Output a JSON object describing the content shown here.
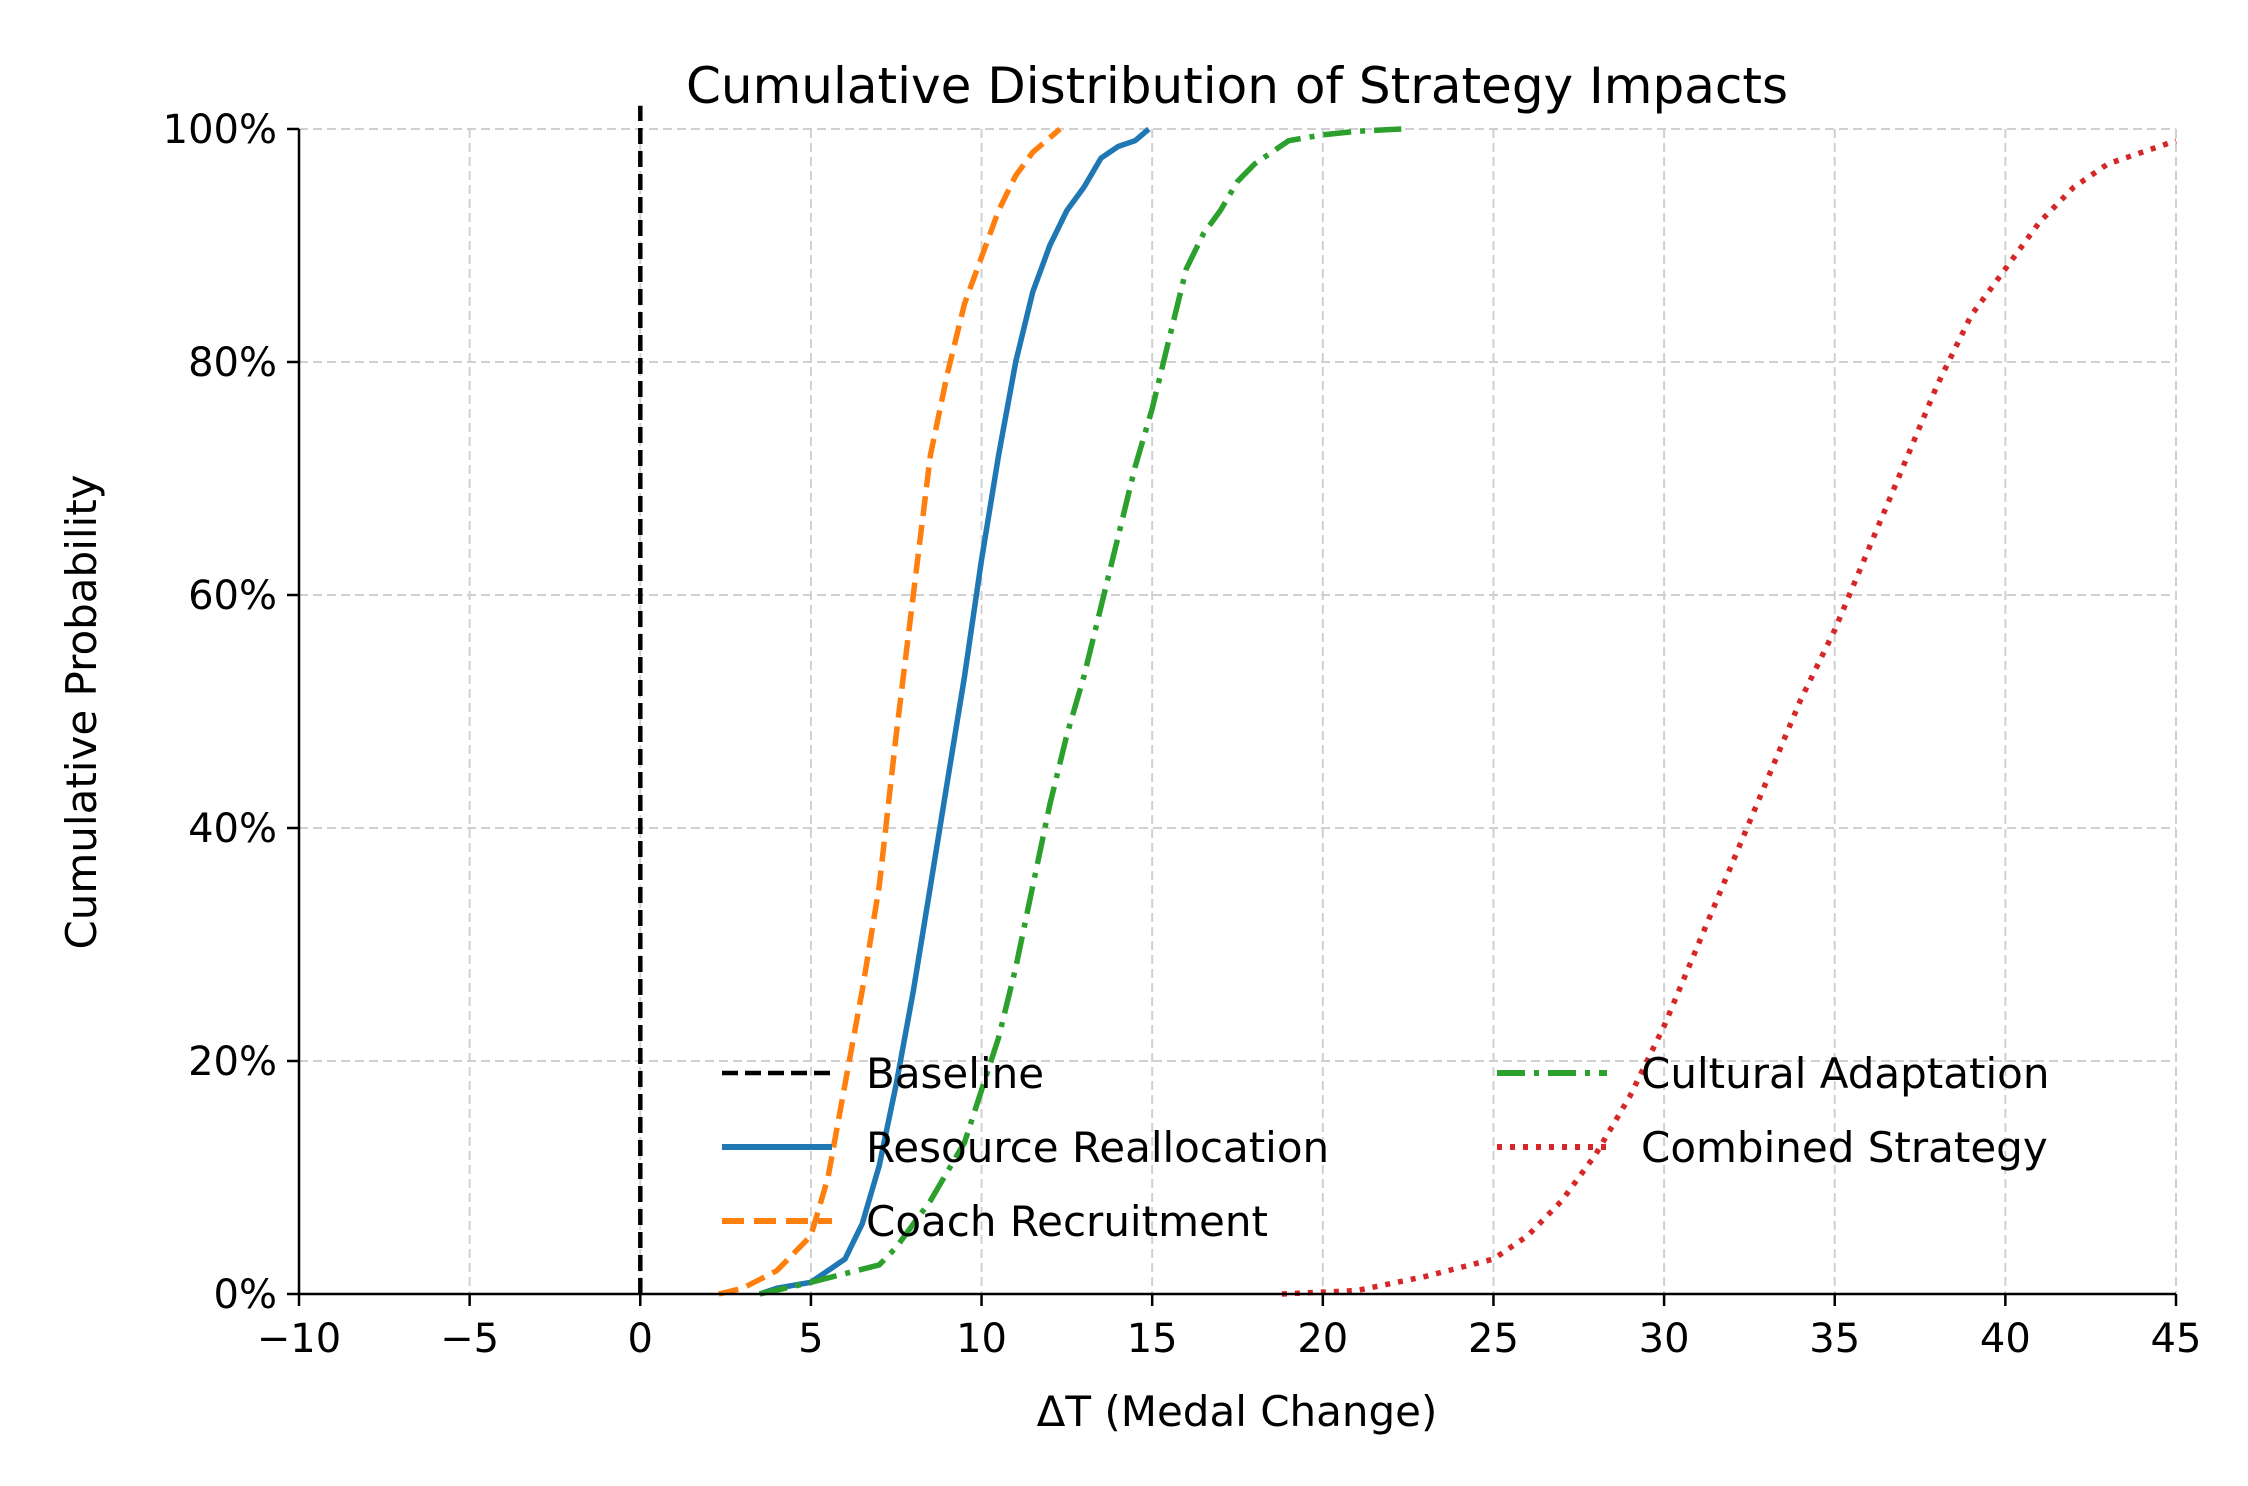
{
  "chart_data": {
    "type": "line",
    "title": "Cumulative Distribution of Strategy Impacts",
    "xlabel": "ΔT (Medal Change)",
    "ylabel": "Cumulative Probability",
    "xlim": [
      -10,
      45
    ],
    "ylim": [
      0,
      1
    ],
    "x_ticks": [
      -10,
      -5,
      0,
      5,
      10,
      15,
      20,
      25,
      30,
      35,
      40,
      45
    ],
    "x_tick_labels": [
      "−10",
      "−5",
      "0",
      "5",
      "10",
      "15",
      "20",
      "25",
      "30",
      "35",
      "40",
      "45"
    ],
    "y_ticks": [
      0,
      0.2,
      0.4,
      0.6,
      0.8,
      1.0
    ],
    "y_tick_labels": [
      "0%",
      "20%",
      "40%",
      "60%",
      "80%",
      "100%"
    ],
    "grid": true,
    "legend_position": "bottom-center",
    "series": [
      {
        "name": "Baseline",
        "color": "#000000",
        "style": "dashed",
        "points": [
          [
            0,
            0
          ],
          [
            0,
            1.02
          ]
        ]
      },
      {
        "name": "Resource Reallocation",
        "color": "#1f77b4",
        "style": "solid",
        "points": [
          [
            3.5,
            0
          ],
          [
            4,
            0.005
          ],
          [
            5,
            0.01
          ],
          [
            6,
            0.03
          ],
          [
            6.5,
            0.06
          ],
          [
            7,
            0.11
          ],
          [
            7.5,
            0.18
          ],
          [
            8,
            0.26
          ],
          [
            8.5,
            0.35
          ],
          [
            9,
            0.44
          ],
          [
            9.5,
            0.53
          ],
          [
            10,
            0.63
          ],
          [
            10.5,
            0.72
          ],
          [
            11,
            0.8
          ],
          [
            11.5,
            0.86
          ],
          [
            12,
            0.9
          ],
          [
            12.5,
            0.93
          ],
          [
            13,
            0.95
          ],
          [
            13.5,
            0.975
          ],
          [
            14,
            0.985
          ],
          [
            14.5,
            0.99
          ],
          [
            14.9,
            1.0
          ]
        ]
      },
      {
        "name": "Coach Recruitment",
        "color": "#ff7f0e",
        "style": "dashed",
        "points": [
          [
            2.3,
            0
          ],
          [
            3,
            0.005
          ],
          [
            4,
            0.02
          ],
          [
            5,
            0.05
          ],
          [
            5.5,
            0.1
          ],
          [
            6,
            0.18
          ],
          [
            6.5,
            0.26
          ],
          [
            7,
            0.35
          ],
          [
            7.5,
            0.48
          ],
          [
            8,
            0.6
          ],
          [
            8.5,
            0.72
          ],
          [
            9,
            0.79
          ],
          [
            9.5,
            0.85
          ],
          [
            10,
            0.89
          ],
          [
            10.5,
            0.93
          ],
          [
            11,
            0.96
          ],
          [
            11.5,
            0.98
          ],
          [
            12.3,
            1.0
          ]
        ]
      },
      {
        "name": "Cultural Adaptation",
        "color": "#2ca02c",
        "style": "dashdot",
        "points": [
          [
            3.5,
            0
          ],
          [
            5,
            0.01
          ],
          [
            7,
            0.025
          ],
          [
            7.5,
            0.04
          ],
          [
            8.5,
            0.08
          ],
          [
            9.5,
            0.13
          ],
          [
            10.5,
            0.22
          ],
          [
            11,
            0.28
          ],
          [
            11.5,
            0.35
          ],
          [
            12,
            0.42
          ],
          [
            12.5,
            0.48
          ],
          [
            13,
            0.53
          ],
          [
            13.5,
            0.59
          ],
          [
            14,
            0.65
          ],
          [
            14.5,
            0.71
          ],
          [
            15,
            0.76
          ],
          [
            15.5,
            0.82
          ],
          [
            16,
            0.88
          ],
          [
            16.5,
            0.91
          ],
          [
            17,
            0.93
          ],
          [
            17.5,
            0.955
          ],
          [
            18,
            0.97
          ],
          [
            19,
            0.99
          ],
          [
            20,
            0.995
          ],
          [
            21,
            0.998
          ],
          [
            22.3,
            1.0
          ]
        ]
      },
      {
        "name": "Combined Strategy",
        "color": "#d62728",
        "style": "dotted",
        "points": [
          [
            18.8,
            0
          ],
          [
            21,
            0.003
          ],
          [
            23,
            0.015
          ],
          [
            25,
            0.03
          ],
          [
            26,
            0.05
          ],
          [
            27,
            0.08
          ],
          [
            28,
            0.12
          ],
          [
            29,
            0.17
          ],
          [
            30,
            0.23
          ],
          [
            31,
            0.3
          ],
          [
            32,
            0.37
          ],
          [
            33,
            0.44
          ],
          [
            34,
            0.51
          ],
          [
            35,
            0.57
          ],
          [
            36,
            0.64
          ],
          [
            37,
            0.71
          ],
          [
            38,
            0.78
          ],
          [
            39,
            0.84
          ],
          [
            40,
            0.88
          ],
          [
            41,
            0.92
          ],
          [
            42,
            0.95
          ],
          [
            43,
            0.97
          ],
          [
            44,
            0.98
          ],
          [
            45,
            0.99
          ]
        ]
      }
    ]
  }
}
